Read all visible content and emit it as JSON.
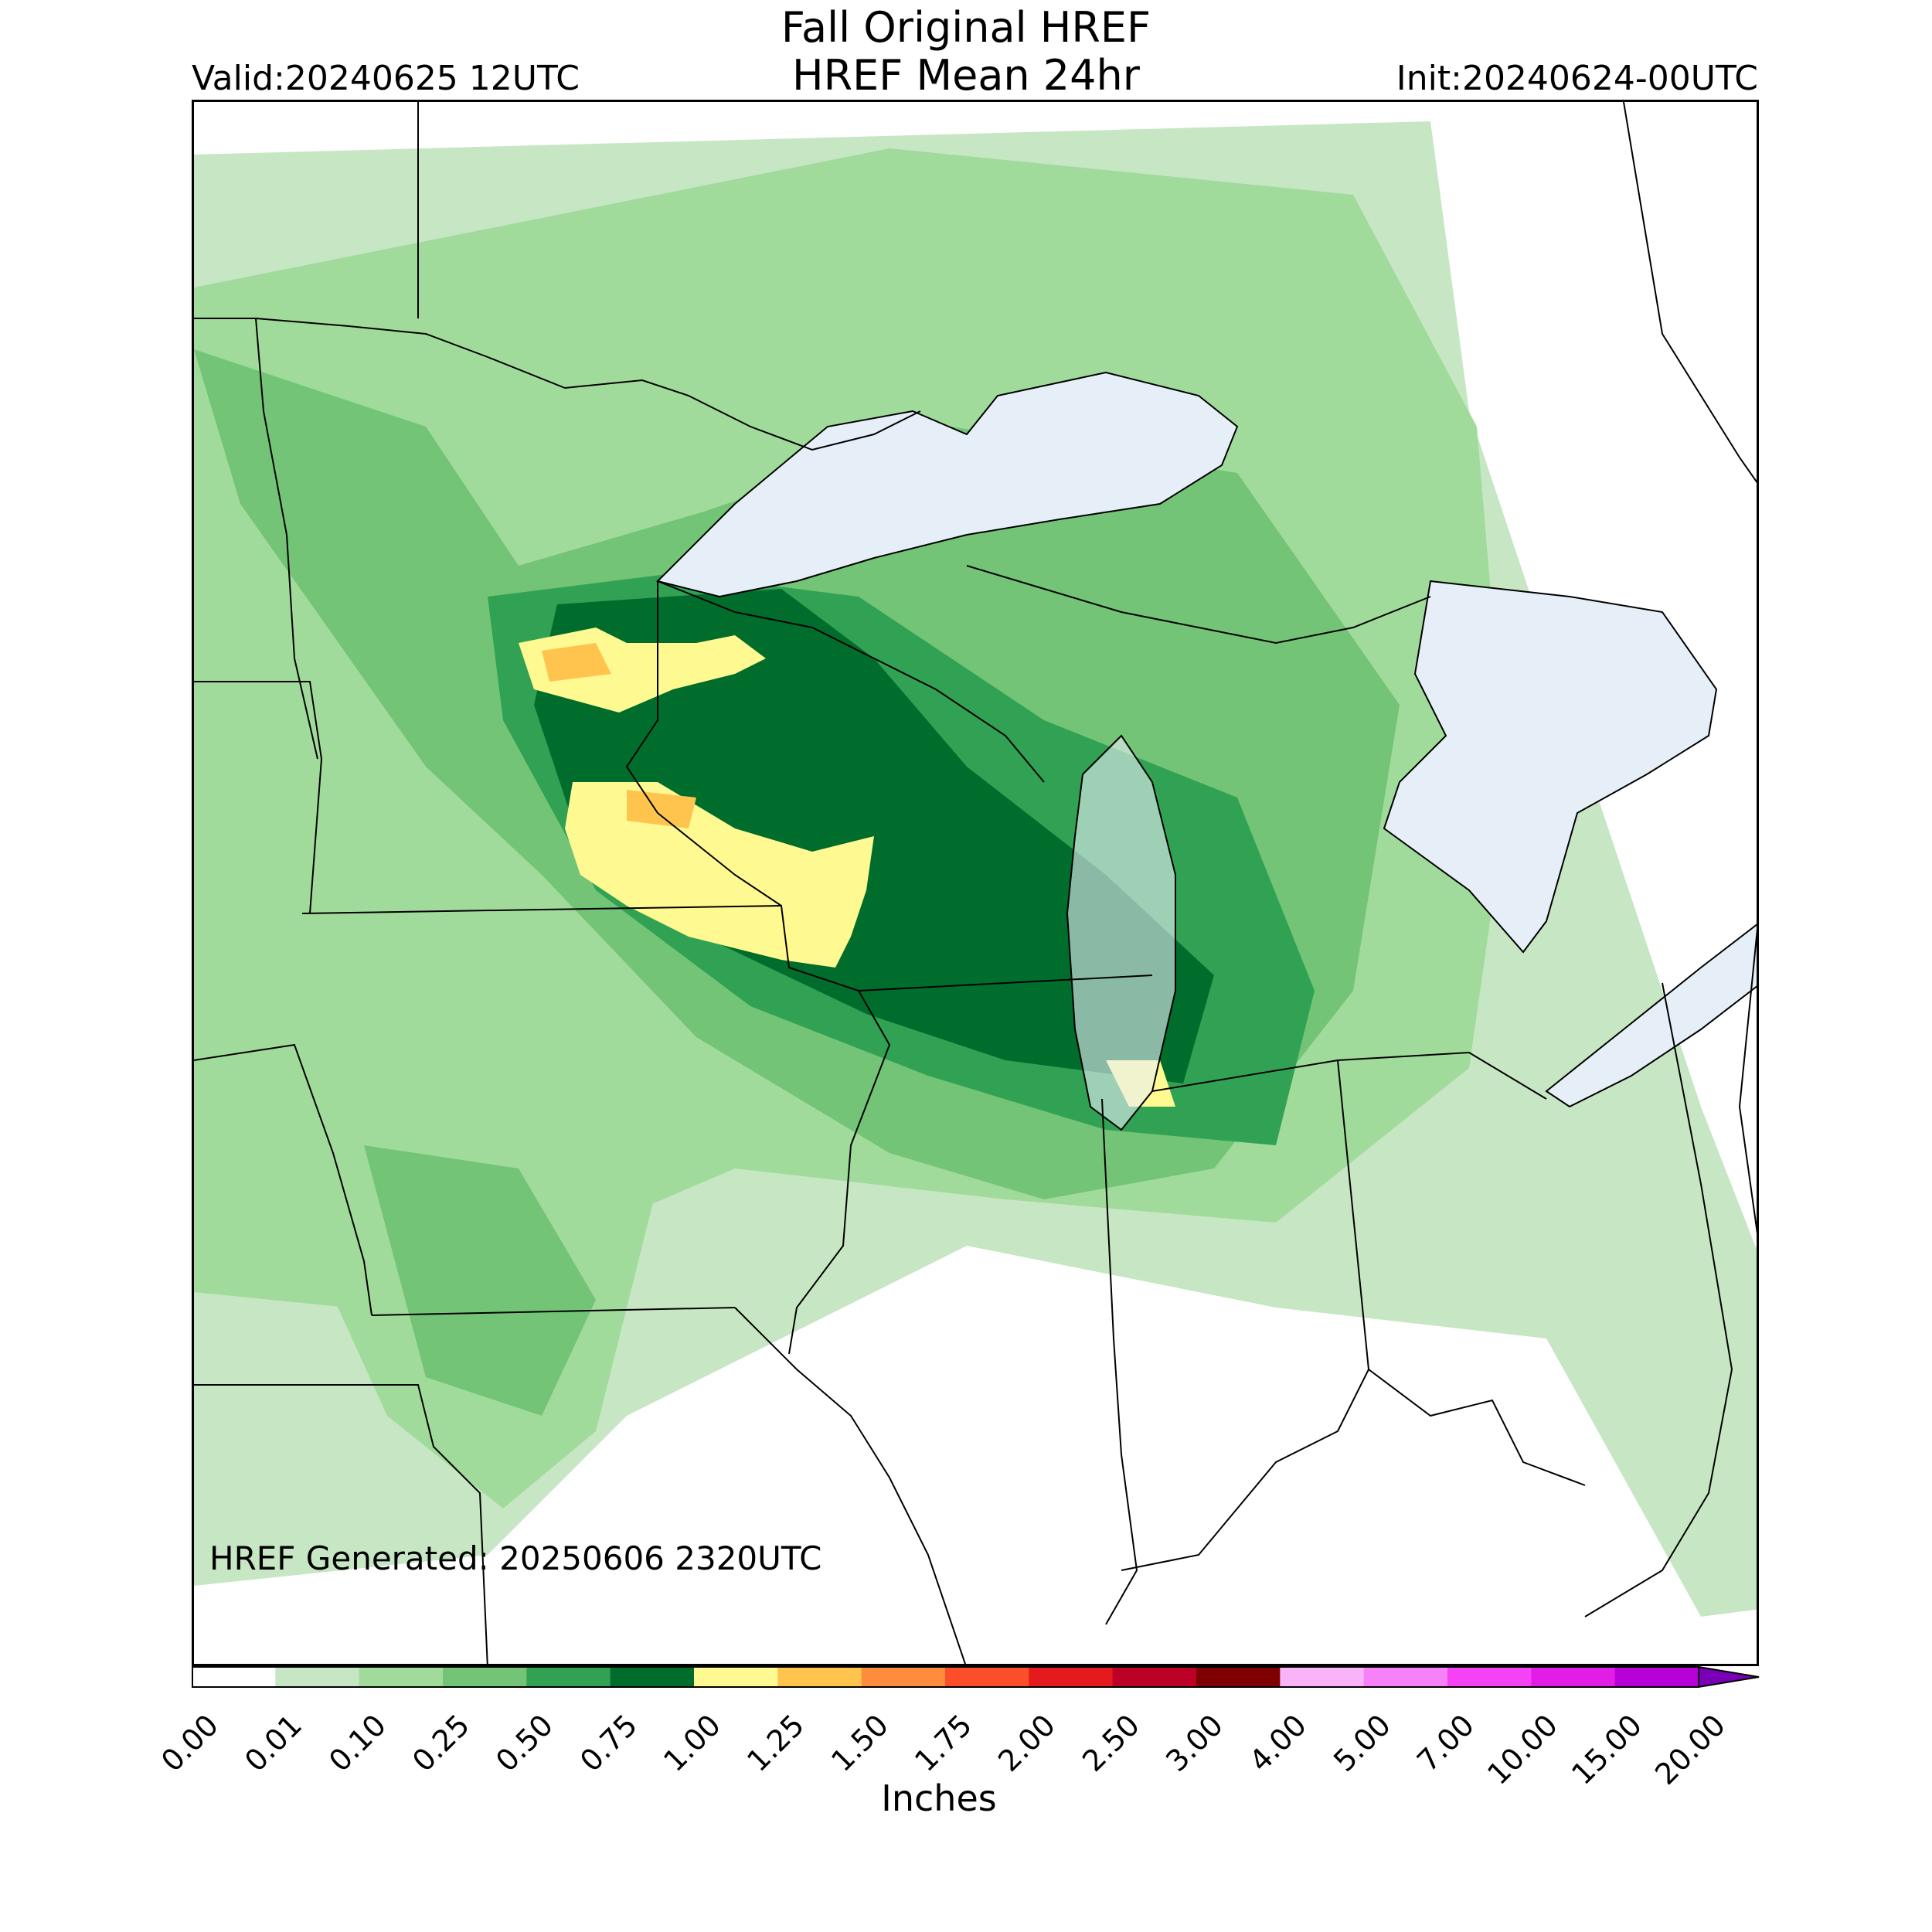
{
  "title_line1": "Fall Original HREF",
  "title_line2": "HREF Mean 24hr",
  "valid": "Valid:20240625 12UTC",
  "init": "Init:20240624-00UTC",
  "generated": "HREF Generated: 20250606 2320UTC",
  "colorbar": {
    "units": "Inches",
    "ticks": [
      "0.00",
      "0.01",
      "0.10",
      "0.25",
      "0.50",
      "0.75",
      "1.00",
      "1.25",
      "1.50",
      "1.75",
      "2.00",
      "2.50",
      "3.00",
      "4.00",
      "5.00",
      "7.00",
      "10.00",
      "15.00",
      "20.00"
    ],
    "colors": [
      "#ffffff",
      "#c7e6c3",
      "#a1db9b",
      "#73c476",
      "#31a254",
      "#006d2c",
      "#fff991",
      "#fec44e",
      "#fd8c3c",
      "#fc4e2a",
      "#e41a1c",
      "#bd0026",
      "#7f0000",
      "#f9b3f9",
      "#f781f7",
      "#f542f5",
      "#e21de5",
      "#b800d9",
      "#7a00b8"
    ],
    "extend_color": "#4b0082"
  },
  "colors": {
    "lake_fill": "#e6eef7",
    "border": "#000000"
  }
}
